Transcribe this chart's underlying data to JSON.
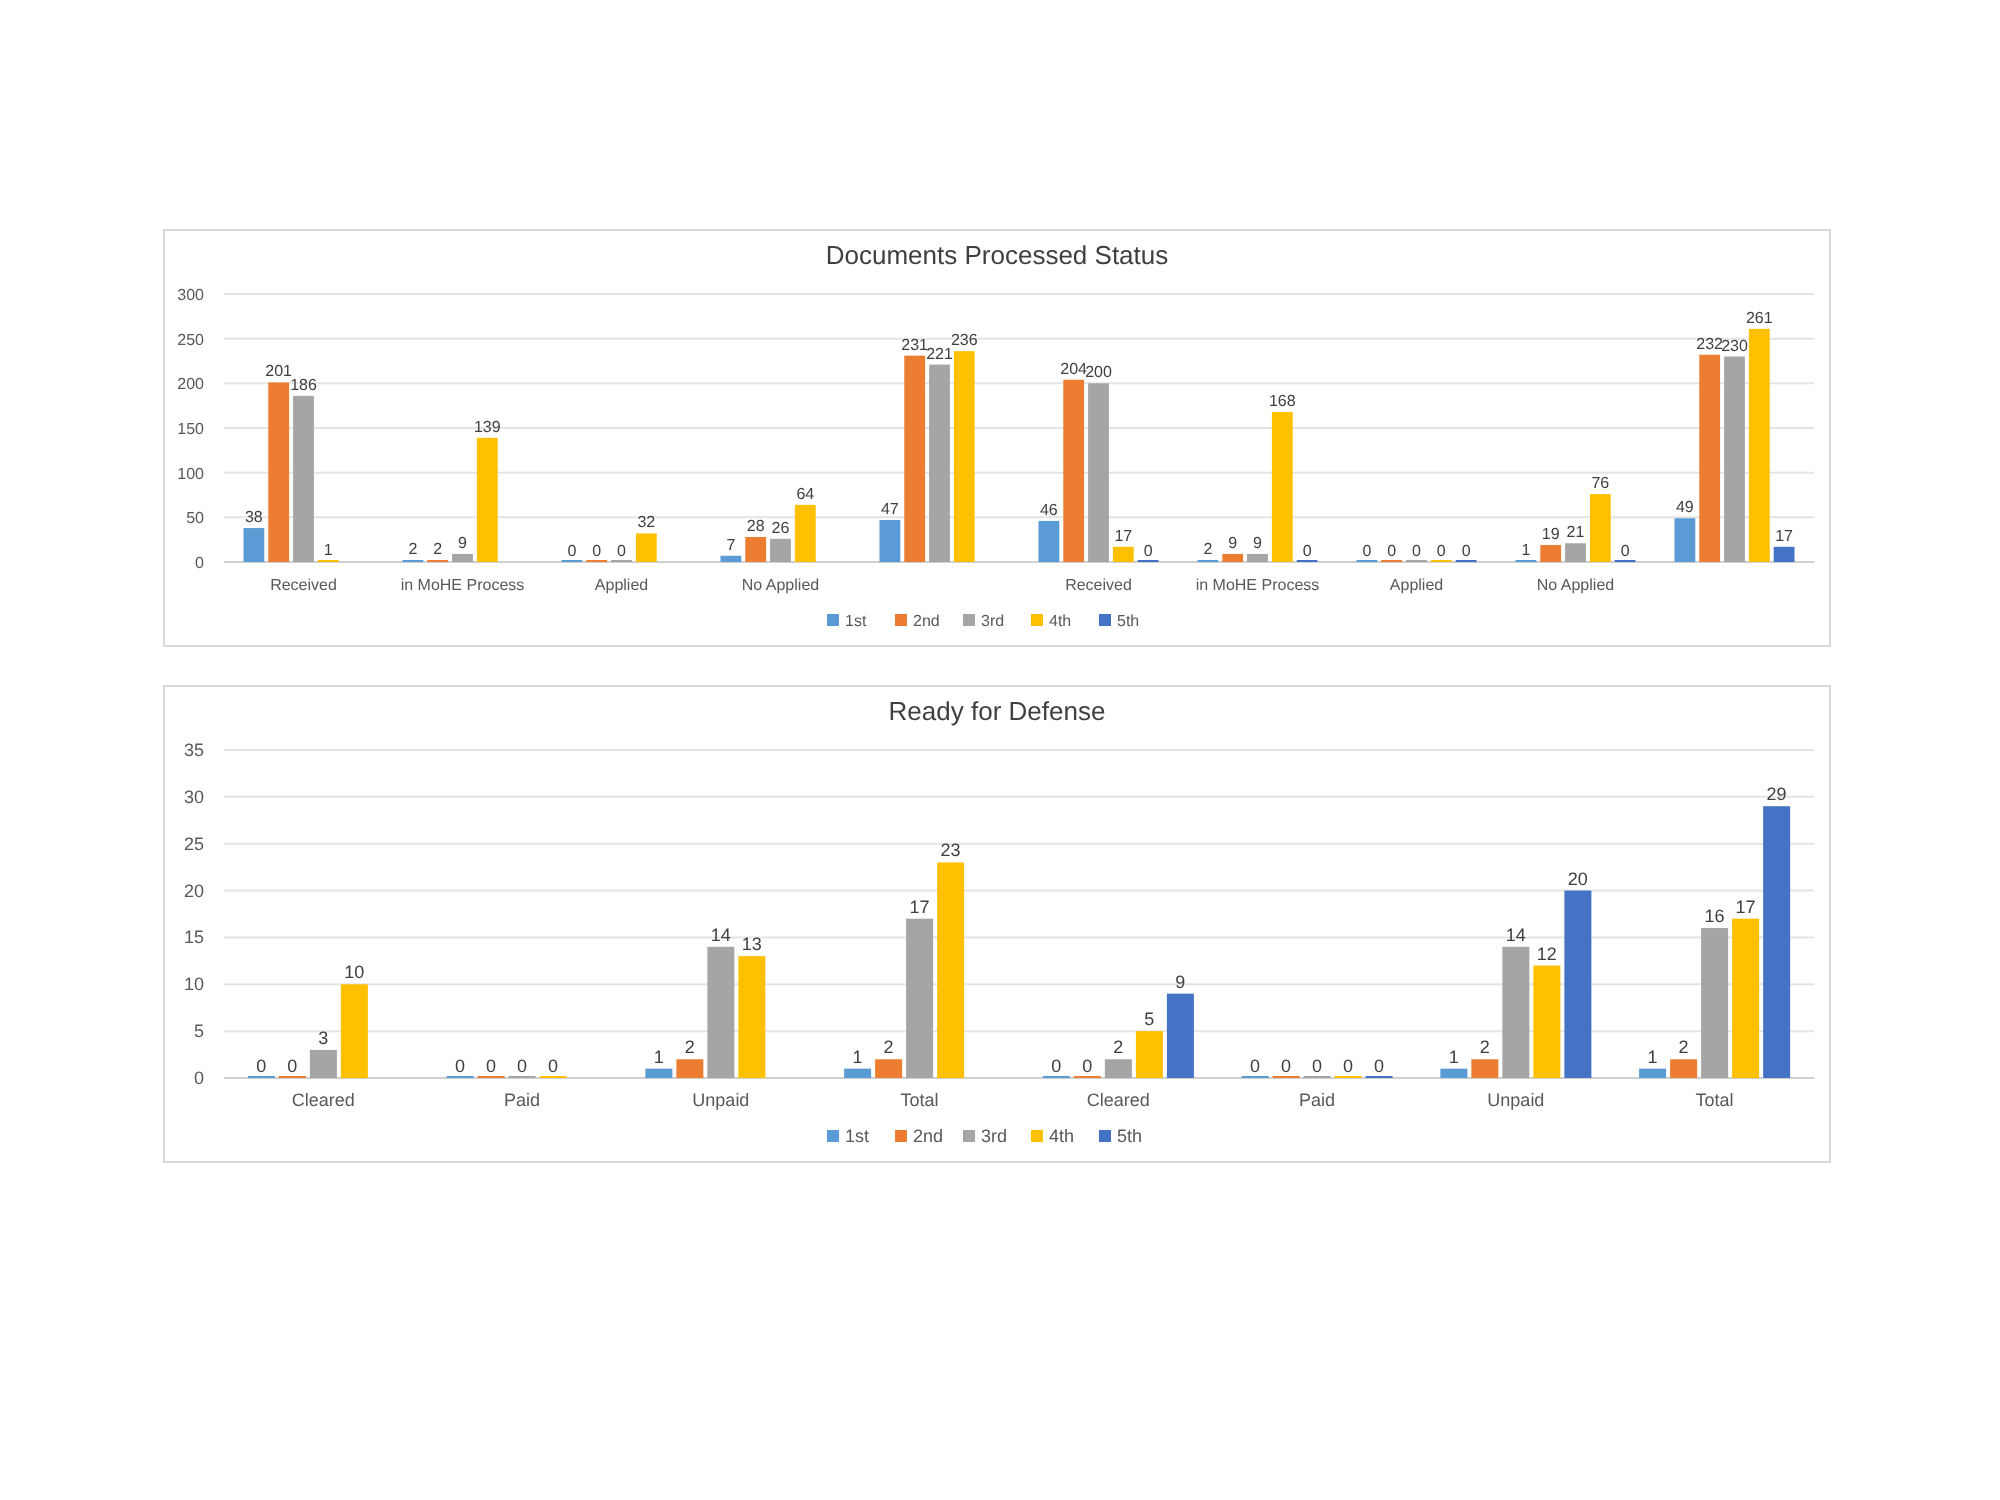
{
  "chart_data": [
    {
      "type": "bar",
      "title": "Documents Processed Status",
      "categories": [
        "Received",
        "in MoHE Process",
        "Applied",
        "No Applied",
        null,
        "Received",
        "in MoHE Process",
        "Applied",
        "No Applied",
        null
      ],
      "series": [
        {
          "name": "1st",
          "color": "#5b9bd5",
          "values": [
            38,
            2,
            0,
            7,
            47,
            46,
            2,
            0,
            1,
            49
          ]
        },
        {
          "name": "2nd",
          "color": "#ed7d31",
          "values": [
            201,
            2,
            0,
            28,
            231,
            204,
            9,
            0,
            19,
            232
          ]
        },
        {
          "name": "3rd",
          "color": "#a5a5a5",
          "values": [
            186,
            9,
            0,
            26,
            221,
            200,
            9,
            0,
            21,
            230
          ]
        },
        {
          "name": "4th",
          "color": "#ffc000",
          "values": [
            1,
            139,
            32,
            64,
            236,
            17,
            168,
            0,
            76,
            261
          ]
        },
        {
          "name": "5th",
          "color": "#4472c4",
          "values": [
            null,
            null,
            null,
            null,
            null,
            0,
            0,
            0,
            0,
            17
          ]
        }
      ],
      "ylim": [
        0,
        300
      ],
      "yticks": [
        0,
        50,
        100,
        150,
        200,
        250,
        300
      ],
      "grid": "y",
      "legend": "bottom",
      "data_labels": true
    },
    {
      "type": "bar",
      "title": "Ready for Defense",
      "categories": [
        "Cleared",
        "Paid",
        "Unpaid",
        "Total",
        "Cleared",
        "Paid",
        "Unpaid",
        "Total"
      ],
      "series": [
        {
          "name": "1st",
          "color": "#5b9bd5",
          "values": [
            0,
            0,
            1,
            1,
            0,
            0,
            1,
            1
          ]
        },
        {
          "name": "2nd",
          "color": "#ed7d31",
          "values": [
            0,
            0,
            2,
            2,
            0,
            0,
            2,
            2
          ]
        },
        {
          "name": "3rd",
          "color": "#a5a5a5",
          "values": [
            3,
            0,
            14,
            17,
            2,
            0,
            14,
            16
          ]
        },
        {
          "name": "4th",
          "color": "#ffc000",
          "values": [
            10,
            0,
            13,
            23,
            5,
            0,
            12,
            17
          ]
        },
        {
          "name": "5th",
          "color": "#4472c4",
          "values": [
            null,
            null,
            null,
            null,
            9,
            0,
            20,
            29
          ]
        }
      ],
      "ylim": [
        0,
        35
      ],
      "yticks": [
        0,
        5,
        10,
        15,
        20,
        25,
        30,
        35
      ],
      "grid": "y",
      "legend": "bottom",
      "data_labels": true
    }
  ]
}
